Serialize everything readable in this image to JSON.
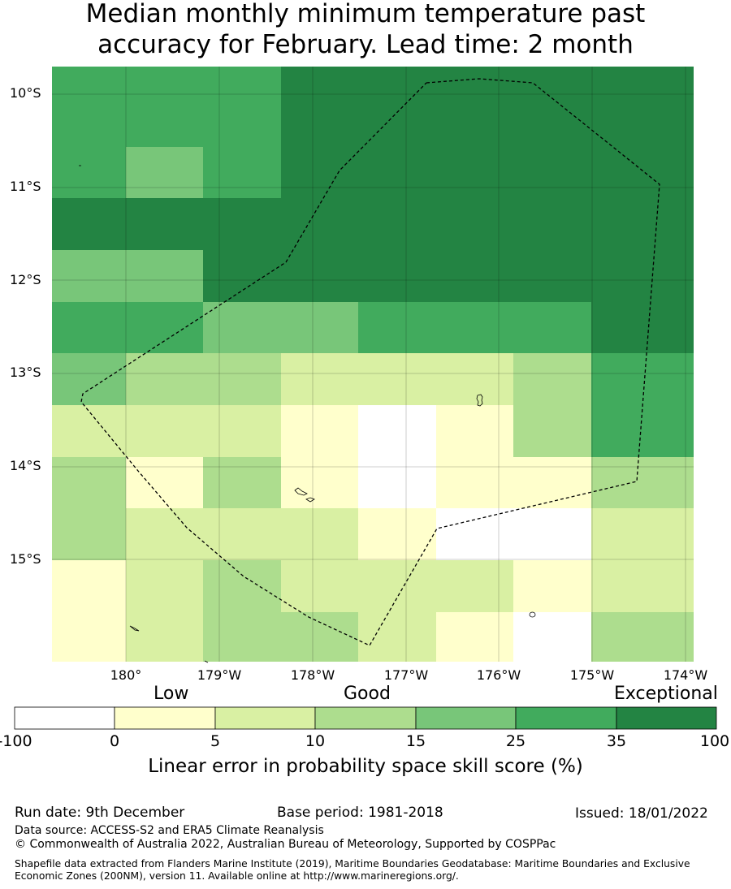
{
  "title_line1": "Median monthly minimum temperature past",
  "title_line2": "accuracy for February. Lead time: 2 month",
  "map": {
    "lat_labels": [
      "10°S",
      "11°S",
      "12°S",
      "13°S",
      "14°S",
      "15°S"
    ],
    "lon_labels": [
      "180°",
      "179°W",
      "178°W",
      "177°W",
      "176°W",
      "175°W",
      "174°W"
    ],
    "legend_categories": {
      "low": "Low",
      "good": "Good",
      "exceptional": "Exceptional"
    },
    "colorbar_bins": [
      {
        "from": -100,
        "to": 0,
        "color": "#ffffff"
      },
      {
        "from": 0,
        "to": 5,
        "color": "#ffffcc"
      },
      {
        "from": 5,
        "to": 10,
        "color": "#d9f0a3"
      },
      {
        "from": 10,
        "to": 15,
        "color": "#addd8e"
      },
      {
        "from": 15,
        "to": 25,
        "color": "#78c679"
      },
      {
        "from": 25,
        "to": 35,
        "color": "#41ab5d"
      },
      {
        "from": 35,
        "to": 100,
        "color": "#238443"
      }
    ],
    "colorbar_ticks": [
      "-100",
      "0",
      "5",
      "10",
      "15",
      "25",
      "35",
      "100"
    ],
    "colorbar_label": "Linear error in probability space skill score (%)",
    "grid_skill_classes": [
      [
        5,
        5,
        5,
        6,
        6,
        6,
        6,
        6
      ],
      [
        5,
        4,
        5,
        6,
        6,
        6,
        6,
        6
      ],
      [
        6,
        6,
        6,
        6,
        6,
        6,
        6,
        6
      ],
      [
        4,
        4,
        6,
        6,
        6,
        6,
        6,
        6
      ],
      [
        5,
        5,
        4,
        4,
        5,
        5,
        5,
        6
      ],
      [
        4,
        3,
        3,
        2,
        2,
        2,
        3,
        5
      ],
      [
        2,
        2,
        2,
        1,
        0,
        1,
        3,
        5
      ],
      [
        3,
        1,
        3,
        1,
        0,
        1,
        1,
        3
      ],
      [
        3,
        2,
        2,
        2,
        1,
        0,
        0,
        2
      ],
      [
        1,
        2,
        3,
        2,
        2,
        2,
        1,
        2
      ],
      [
        1,
        2,
        3,
        3,
        2,
        1,
        0,
        3
      ]
    ]
  },
  "footer": {
    "run_date": "Run date: 9th December",
    "base_period": "Base period: 1981-2018",
    "issued": "Issued: 18/01/2022",
    "data_source": "Data source: ACCESS-S2 and ERA5 Climate Reanalysis",
    "copyright": "© Commonwealth of Australia 2022, Australian Bureau of Meteorology, Supported by COSPPac",
    "shapefile_note": "Shapefile data extracted from Flanders Marine Institute (2019), Maritime Boundaries Geodatabase: Maritime Boundaries and Exclusive Economic Zones (200NM), version 11. Available online at http://www.marineregions.org/."
  }
}
